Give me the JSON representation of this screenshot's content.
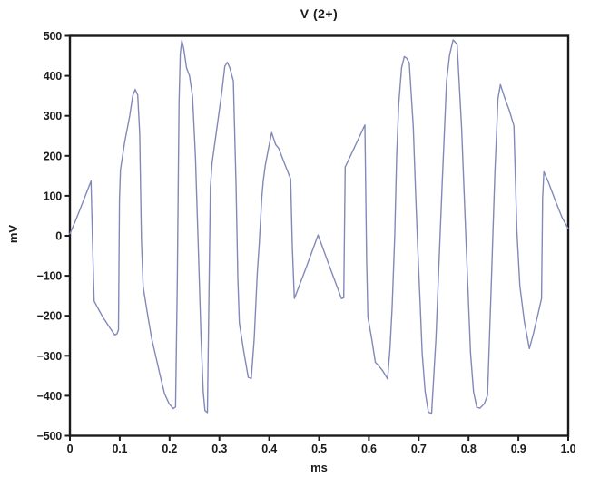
{
  "chart_data": {
    "type": "line",
    "title": "V (2+)",
    "xlabel": "ms",
    "ylabel": "mV",
    "xlim": [
      0,
      1.0
    ],
    "ylim": [
      -500,
      500
    ],
    "grid": false,
    "legend": null,
    "x_ticks": {
      "values": [
        0,
        0.1,
        0.2,
        0.3,
        0.4,
        0.5,
        0.6,
        0.7,
        0.8,
        0.9,
        1.0
      ],
      "labels": [
        "0",
        "0.1",
        "0.2",
        "0.3",
        "0.4",
        "0.5",
        "0.6",
        "0.7",
        "0.8",
        "0.9",
        "1.0"
      ]
    },
    "y_ticks": {
      "values": [
        500,
        400,
        300,
        200,
        100,
        0,
        -100,
        -200,
        -300,
        -400,
        -500
      ],
      "labels": [
        "500",
        "400",
        "300",
        "200",
        "100",
        "0",
        "−100",
        "−200",
        "−300",
        "−400",
        "−500"
      ]
    },
    "series": [
      {
        "name": "V(2+)",
        "color": "#8289b8",
        "points": [
          [
            0.0,
            5
          ],
          [
            0.012,
            40
          ],
          [
            0.024,
            78
          ],
          [
            0.034,
            110
          ],
          [
            0.0425,
            137
          ],
          [
            0.0455,
            -20
          ],
          [
            0.0486,
            -163
          ],
          [
            0.058,
            -185
          ],
          [
            0.067,
            -205
          ],
          [
            0.079,
            -228
          ],
          [
            0.09,
            -248
          ],
          [
            0.0945,
            -245
          ],
          [
            0.0975,
            -235
          ],
          [
            0.0995,
            90
          ],
          [
            0.1015,
            165
          ],
          [
            0.11,
            235
          ],
          [
            0.12,
            300
          ],
          [
            0.126,
            350
          ],
          [
            0.131,
            366
          ],
          [
            0.136,
            352
          ],
          [
            0.14,
            255
          ],
          [
            0.1435,
            -10
          ],
          [
            0.147,
            -127
          ],
          [
            0.155,
            -190
          ],
          [
            0.164,
            -256
          ],
          [
            0.173,
            -305
          ],
          [
            0.182,
            -354
          ],
          [
            0.19,
            -395
          ],
          [
            0.199,
            -420
          ],
          [
            0.2075,
            -432
          ],
          [
            0.212,
            -428
          ],
          [
            0.2155,
            -120
          ],
          [
            0.219,
            330
          ],
          [
            0.2215,
            455
          ],
          [
            0.2245,
            489
          ],
          [
            0.2285,
            468
          ],
          [
            0.234,
            420
          ],
          [
            0.24,
            400
          ],
          [
            0.246,
            349
          ],
          [
            0.252,
            198
          ],
          [
            0.258,
            -40
          ],
          [
            0.263,
            -250
          ],
          [
            0.2675,
            -390
          ],
          [
            0.271,
            -437
          ],
          [
            0.276,
            -442
          ],
          [
            0.2785,
            -200
          ],
          [
            0.282,
            122
          ],
          [
            0.2855,
            183
          ],
          [
            0.295,
            270
          ],
          [
            0.305,
            360
          ],
          [
            0.311,
            424
          ],
          [
            0.316,
            434
          ],
          [
            0.321,
            420
          ],
          [
            0.328,
            387
          ],
          [
            0.3335,
            122
          ],
          [
            0.337,
            -105
          ],
          [
            0.34,
            -218
          ],
          [
            0.349,
            -290
          ],
          [
            0.358,
            -354
          ],
          [
            0.364,
            -357
          ],
          [
            0.37,
            -256
          ],
          [
            0.376,
            -95
          ],
          [
            0.38,
            -20
          ],
          [
            0.385,
            95
          ],
          [
            0.388,
            137
          ],
          [
            0.392,
            175
          ],
          [
            0.399,
            222
          ],
          [
            0.405,
            258
          ],
          [
            0.413,
            228
          ],
          [
            0.419,
            219
          ],
          [
            0.431,
            180
          ],
          [
            0.443,
            142
          ],
          [
            0.4465,
            -30
          ],
          [
            0.4495,
            -130
          ],
          [
            0.4505,
            -157
          ],
          [
            0.474,
            -80
          ],
          [
            0.498,
            2
          ],
          [
            0.522,
            -80
          ],
          [
            0.545,
            -157
          ],
          [
            0.5495,
            -155
          ],
          [
            0.5525,
            172
          ],
          [
            0.565,
            205
          ],
          [
            0.58,
            245
          ],
          [
            0.592,
            277
          ],
          [
            0.5955,
            -60
          ],
          [
            0.598,
            -203
          ],
          [
            0.606,
            -260
          ],
          [
            0.613,
            -316
          ],
          [
            0.621,
            -327
          ],
          [
            0.628,
            -338
          ],
          [
            0.6375,
            -358
          ],
          [
            0.6425,
            -280
          ],
          [
            0.6466,
            -180
          ],
          [
            0.652,
            0
          ],
          [
            0.6557,
            200
          ],
          [
            0.66,
            330
          ],
          [
            0.6655,
            420
          ],
          [
            0.671,
            448
          ],
          [
            0.676,
            444
          ],
          [
            0.681,
            432
          ],
          [
            0.689,
            273
          ],
          [
            0.694,
            100
          ],
          [
            0.698,
            -29
          ],
          [
            0.703,
            -170
          ],
          [
            0.707,
            -293
          ],
          [
            0.713,
            -390
          ],
          [
            0.7195,
            -441
          ],
          [
            0.7258,
            -444
          ],
          [
            0.7346,
            -256
          ],
          [
            0.7468,
            122
          ],
          [
            0.7559,
            387
          ],
          [
            0.762,
            452
          ],
          [
            0.769,
            490
          ],
          [
            0.777,
            479
          ],
          [
            0.786,
            273
          ],
          [
            0.7955,
            -29
          ],
          [
            0.804,
            -293
          ],
          [
            0.81,
            -390
          ],
          [
            0.8165,
            -429
          ],
          [
            0.823,
            -431
          ],
          [
            0.8315,
            -420
          ],
          [
            0.838,
            -399
          ],
          [
            0.8455,
            -125
          ],
          [
            0.849,
            10
          ],
          [
            0.853,
            162
          ],
          [
            0.857,
            280
          ],
          [
            0.859,
            343
          ],
          [
            0.864,
            378
          ],
          [
            0.873,
            343
          ],
          [
            0.882,
            313
          ],
          [
            0.891,
            275
          ],
          [
            0.894,
            146
          ],
          [
            0.897,
            10
          ],
          [
            0.903,
            -125
          ],
          [
            0.912,
            -215
          ],
          [
            0.922,
            -282
          ],
          [
            0.93,
            -245
          ],
          [
            0.9395,
            -195
          ],
          [
            0.9465,
            -157
          ],
          [
            0.9487,
            95
          ],
          [
            0.9512,
            160
          ],
          [
            0.96,
            135
          ],
          [
            0.975,
            85
          ],
          [
            0.988,
            45
          ],
          [
            1.0,
            18
          ]
        ]
      }
    ]
  },
  "style": {
    "line_color": "#8289b8",
    "axis_color": "#1b1b1b",
    "background": "#ffffff"
  }
}
